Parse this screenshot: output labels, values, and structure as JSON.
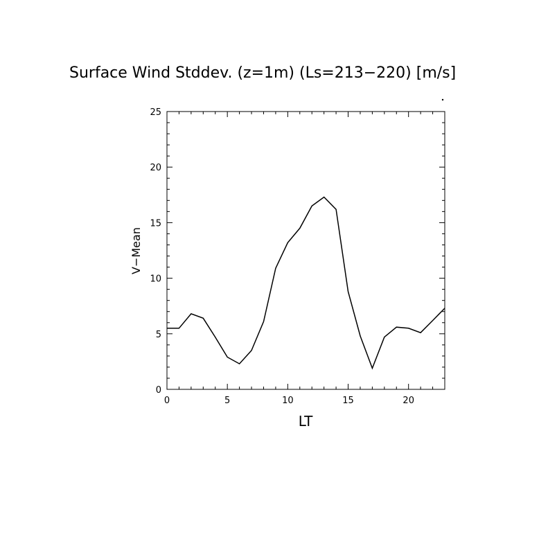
{
  "chart_data": {
    "type": "line",
    "title": "Surface Wind Stddev. (z=1m) (Ls=213−220) [m/s]",
    "xlabel": "LT",
    "ylabel": "V−Mean",
    "xlim": [
      0,
      23
    ],
    "ylim": [
      0,
      25
    ],
    "x_ticks": [
      0,
      5,
      10,
      15,
      20
    ],
    "y_ticks": [
      0,
      5,
      10,
      15,
      20,
      25
    ],
    "x_tick_labels": [
      "0",
      "5",
      "10",
      "15",
      "20"
    ],
    "y_tick_labels": [
      "0",
      "5",
      "10",
      "15",
      "20",
      "25"
    ],
    "grid": false,
    "line_color": "#000000",
    "series": [
      {
        "x": [
          0,
          1,
          2,
          3,
          4,
          5,
          6,
          7,
          8,
          9,
          10,
          11,
          12,
          13,
          14,
          15,
          16,
          17,
          18,
          19,
          20,
          21,
          22,
          23
        ],
        "values": [
          5.5,
          5.5,
          6.8,
          6.4,
          4.7,
          2.9,
          2.3,
          3.5,
          6.1,
          10.9,
          13.2,
          14.5,
          16.5,
          17.3,
          16.2,
          8.8,
          4.8,
          1.9,
          4.7,
          5.6,
          5.5,
          5.1,
          6.2,
          7.3
        ]
      }
    ]
  }
}
